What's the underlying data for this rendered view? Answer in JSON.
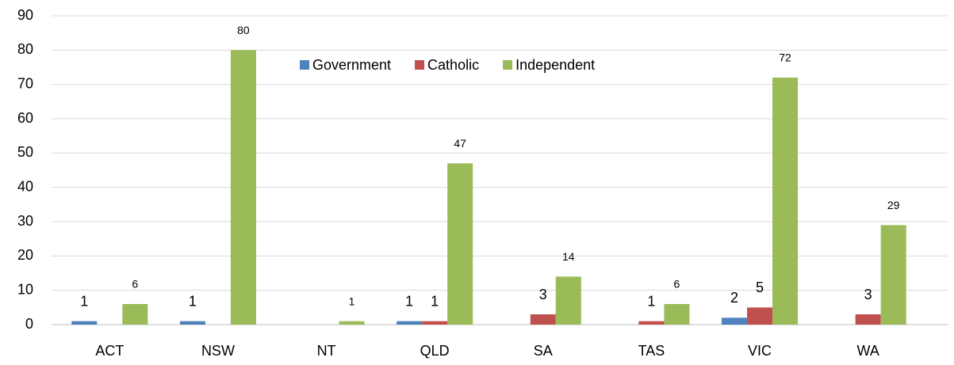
{
  "chart_data": {
    "type": "bar",
    "categories": [
      "ACT",
      "NSW",
      "NT",
      "QLD",
      "SA",
      "TAS",
      "VIC",
      "WA"
    ],
    "series": [
      {
        "name": "Government",
        "color": "#4f81bd",
        "values": [
          1,
          1,
          null,
          1,
          null,
          null,
          2,
          null
        ]
      },
      {
        "name": "Catholic",
        "color": "#c0504d",
        "values": [
          null,
          null,
          null,
          1,
          3,
          1,
          5,
          3
        ]
      },
      {
        "name": "Independent",
        "color": "#9bbb59",
        "values": [
          6,
          80,
          1,
          47,
          14,
          6,
          72,
          29
        ]
      }
    ],
    "ylim": [
      0,
      90
    ],
    "yticks": [
      0,
      10,
      20,
      30,
      40,
      50,
      60,
      70,
      80,
      90
    ],
    "grid": true,
    "legend": "top"
  }
}
